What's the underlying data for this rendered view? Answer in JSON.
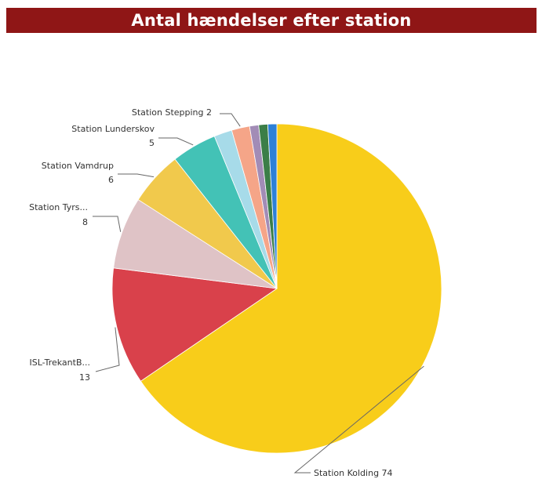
{
  "header": {
    "title": "Antal hændelser efter station"
  },
  "chart_data": {
    "type": "pie",
    "title": "Antal hændelser efter station",
    "slices": [
      {
        "name": "Station Kolding",
        "value": 74,
        "color": "#f8cd1a",
        "label": "Station Kolding 74"
      },
      {
        "name": "ISL-TrekantB...",
        "value": 13,
        "color": "#d9414b",
        "label": "ISL-TrekantB...",
        "value_label": "13"
      },
      {
        "name": "Station Tyrs...",
        "value": 8,
        "color": "#dfc3c6",
        "label": "Station Tyrs...",
        "value_label": "8"
      },
      {
        "name": "Station Vamdrup",
        "value": 6,
        "color": "#f1c94c",
        "label": "Station Vamdrup",
        "value_label": "6"
      },
      {
        "name": "Station Lunderskov",
        "value": 5,
        "color": "#43c2b6",
        "label": "Station Lunderskov",
        "value_label": "5"
      },
      {
        "name": "",
        "value": 2,
        "color": "#a7dbe9"
      },
      {
        "name": "Station Stepping",
        "value": 2,
        "color": "#f5a588",
        "label": "Station Stepping 2"
      },
      {
        "name": "",
        "value": 1,
        "color": "#a28cb6"
      },
      {
        "name": "",
        "value": 1,
        "color": "#3b7e48"
      },
      {
        "name": "",
        "value": 1,
        "color": "#2d80d7"
      }
    ],
    "start_angle": "12 o'clock",
    "direction": "clockwise",
    "legend": "none"
  }
}
